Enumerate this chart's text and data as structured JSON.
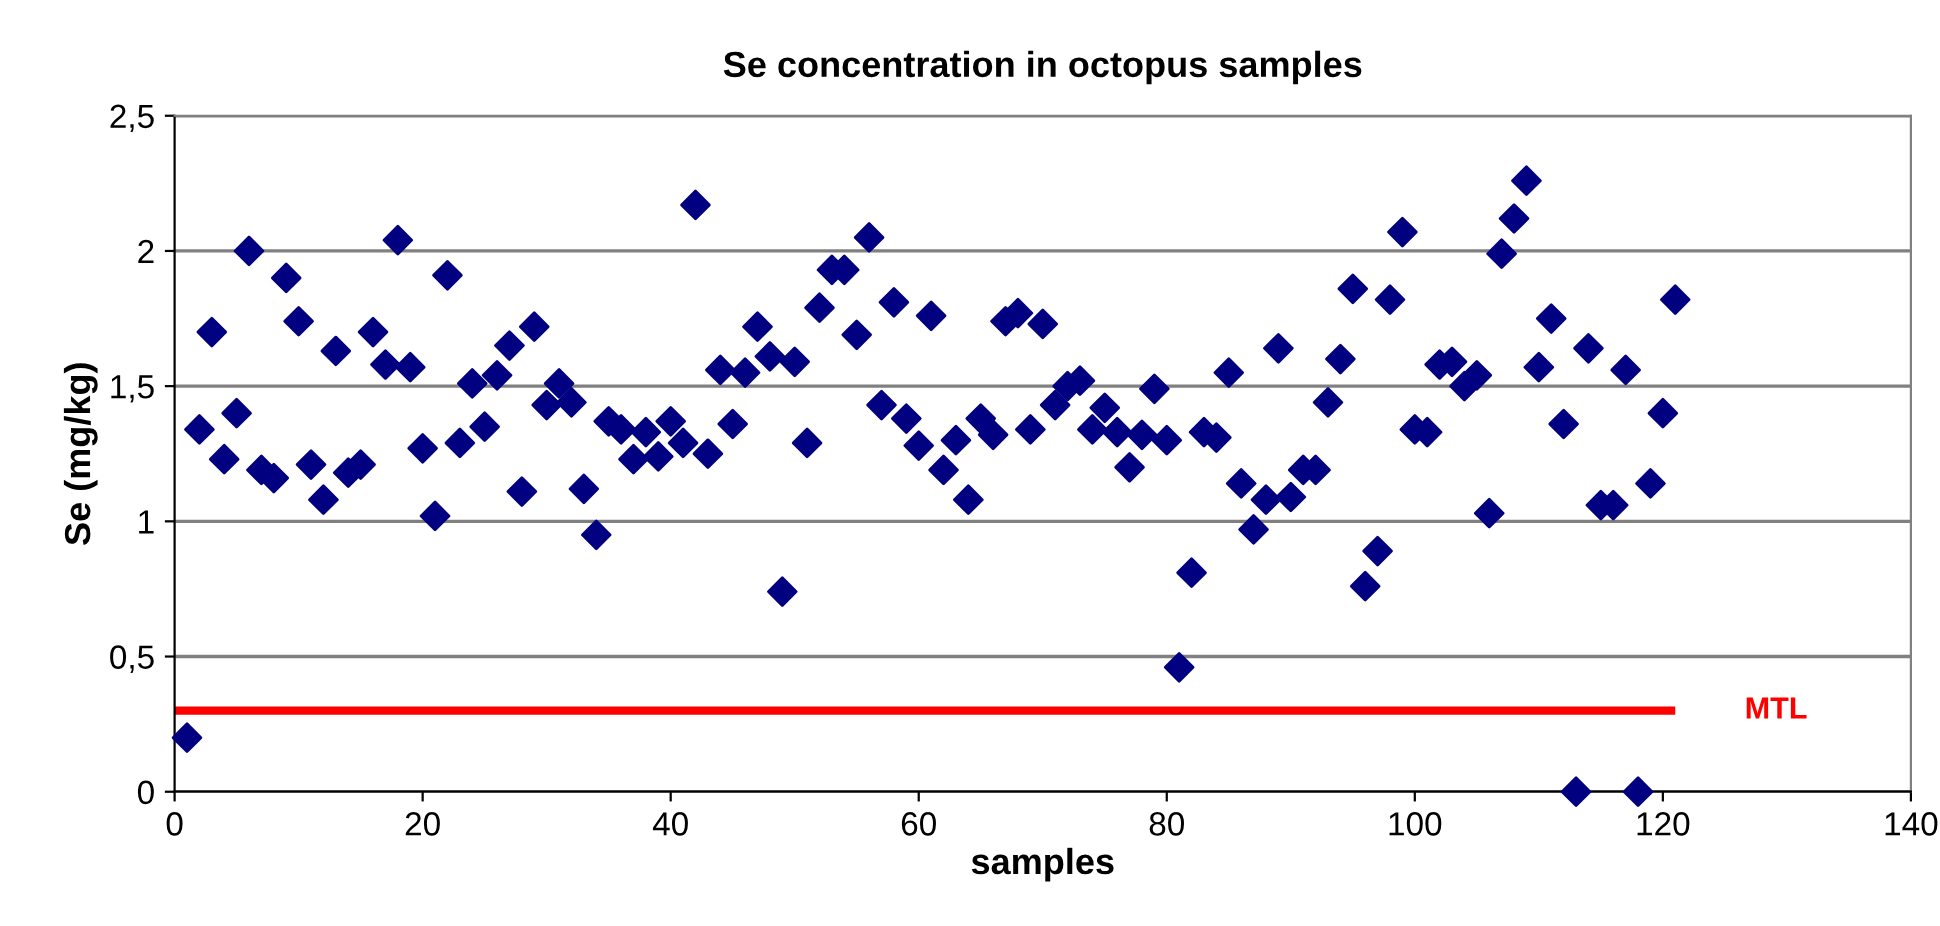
{
  "chart_data": {
    "type": "scatter",
    "title": "Se concentration in octopus samples",
    "xlabel": "samples",
    "ylabel": "Se (mg/kg)",
    "x": [
      1,
      2,
      3,
      4,
      5,
      6,
      7,
      8,
      9,
      10,
      11,
      12,
      13,
      14,
      15,
      16,
      17,
      18,
      19,
      20,
      21,
      22,
      23,
      24,
      25,
      26,
      27,
      28,
      29,
      30,
      31,
      32,
      33,
      34,
      35,
      36,
      37,
      38,
      39,
      40,
      41,
      42,
      43,
      44,
      45,
      46,
      47,
      48,
      49,
      50,
      51,
      52,
      53,
      54,
      55,
      56,
      57,
      58,
      59,
      60,
      61,
      62,
      63,
      64,
      65,
      66,
      67,
      68,
      69,
      70,
      71,
      72,
      73,
      74,
      75,
      76,
      77,
      78,
      79,
      80,
      81,
      82,
      83,
      84,
      85,
      86,
      87,
      88,
      89,
      90,
      91,
      92,
      93,
      94,
      95,
      96,
      97,
      98,
      99,
      100,
      101,
      102,
      103,
      104,
      105,
      106,
      107,
      108,
      109,
      110,
      111,
      112,
      113,
      114,
      115,
      116,
      117,
      118,
      119,
      120,
      121
    ],
    "series": [
      {
        "color": "#000080",
        "values": [
          0.2,
          1.34,
          1.7,
          1.23,
          1.4,
          2.0,
          1.19,
          1.16,
          1.9,
          1.74,
          1.21,
          1.08,
          1.63,
          1.18,
          1.21,
          1.7,
          1.58,
          2.04,
          1.57,
          1.27,
          1.02,
          1.91,
          1.29,
          1.51,
          1.35,
          1.54,
          1.65,
          1.11,
          1.72,
          1.43,
          1.51,
          1.44,
          1.12,
          0.95,
          1.37,
          1.34,
          1.23,
          1.33,
          1.24,
          1.37,
          1.29,
          2.17,
          1.25,
          1.56,
          1.36,
          1.55,
          1.72,
          1.61,
          0.74,
          1.59,
          1.29,
          1.79,
          1.93,
          1.93,
          1.69,
          2.05,
          1.43,
          1.81,
          1.38,
          1.28,
          1.76,
          1.19,
          1.3,
          1.08,
          1.38,
          1.32,
          1.74,
          1.77,
          1.34,
          1.73,
          1.43,
          1.5,
          1.52,
          1.34,
          1.42,
          1.33,
          1.2,
          1.32,
          1.49,
          1.3,
          0.46,
          0.81,
          1.33,
          1.31,
          1.55,
          1.14,
          0.97,
          1.08,
          1.64,
          1.09,
          1.19,
          1.19,
          1.44,
          1.6,
          1.86,
          0.76,
          0.89,
          1.82,
          2.07,
          1.34,
          1.33,
          1.58,
          1.59,
          1.5,
          1.54,
          1.03,
          1.99,
          2.12,
          2.26,
          1.57,
          1.75,
          1.36,
          0.0,
          1.64,
          1.06,
          1.06,
          1.56,
          0.0,
          1.14,
          1.4,
          1.82
        ]
      }
    ],
    "marker": "diamond",
    "xlim": [
      0,
      140
    ],
    "xticks": [
      0,
      20,
      40,
      60,
      80,
      100,
      120,
      140
    ],
    "ylim": [
      0,
      2.5
    ],
    "yticks": [
      {
        "value": 0,
        "label": "0"
      },
      {
        "value": 0.5,
        "label": "0,5"
      },
      {
        "value": 1,
        "label": "1"
      },
      {
        "value": 1.5,
        "label": "1,5"
      },
      {
        "value": 2,
        "label": "2"
      },
      {
        "value": 2.5,
        "label": "2,5"
      }
    ],
    "grid": "y",
    "ref_lines": [
      {
        "axis": "y",
        "value": 0.3,
        "label": "MTL",
        "color": "#ff0000"
      }
    ]
  }
}
